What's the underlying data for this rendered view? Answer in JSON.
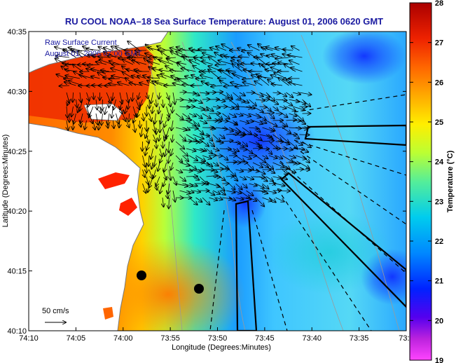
{
  "chart_data": {
    "type": "heatmap",
    "title": "RU COOL  NOAA–18  Sea Surface Temperature:  August 01, 2006 0620 GMT",
    "xlabel": "Longitude (Degrees:Minutes)",
    "ylabel": "Latitude (Degrees:Minutes)",
    "colorbar_label": "Temperature (°C)",
    "x_ticks": [
      "74:10",
      "74:05",
      "74:00",
      "73:55",
      "73:50",
      "73:45",
      "73:40",
      "73:35",
      "73:3"
    ],
    "y_ticks": [
      "40:35",
      "40:30",
      "40:25",
      "40:20",
      "40:15",
      "40:10"
    ],
    "xlim_minutes": [
      0,
      40
    ],
    "ylim_minutes": [
      0,
      25
    ],
    "colorbar_ticks": [
      "28",
      "27",
      "26",
      "25",
      "24",
      "23",
      "22",
      "21",
      "20",
      "19"
    ],
    "clim": [
      19,
      28
    ],
    "legend": {
      "line1": "Raw Surface Current",
      "line2": "August 01, 2006 07:00 GMT",
      "scale_label": "50 cm/s"
    },
    "colors": {
      "land": "#ffffff",
      "coast": "#888888",
      "title": "#1a1aa0"
    }
  }
}
